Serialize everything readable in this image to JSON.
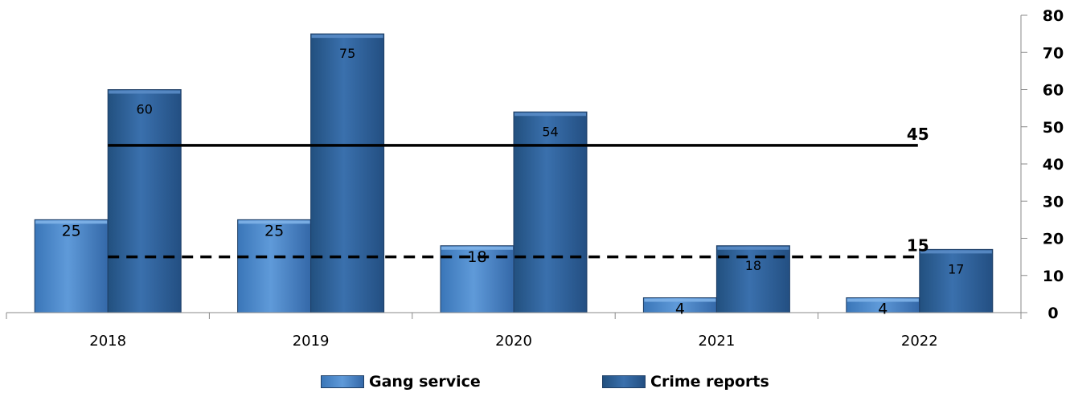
{
  "chart_data": {
    "type": "bar",
    "categories": [
      "2018",
      "2019",
      "2020",
      "2021",
      "2022"
    ],
    "series": [
      {
        "name": "Gang service",
        "values": [
          25,
          25,
          18,
          4,
          4
        ],
        "color": "#4a86c8"
      },
      {
        "name": "Crime reports",
        "values": [
          60,
          75,
          54,
          18,
          17
        ],
        "color": "#2d5e9a"
      }
    ],
    "reference_lines": [
      {
        "value": 45,
        "label": "45",
        "style": "solid"
      },
      {
        "value": 15,
        "label": "15",
        "style": "dashed"
      }
    ],
    "ylim": [
      0,
      80
    ],
    "yticks": [
      "0",
      "10",
      "20",
      "30",
      "40",
      "50",
      "60",
      "70",
      "80"
    ],
    "y_axis_side": "right",
    "grid": false,
    "legend_position": "bottom"
  }
}
